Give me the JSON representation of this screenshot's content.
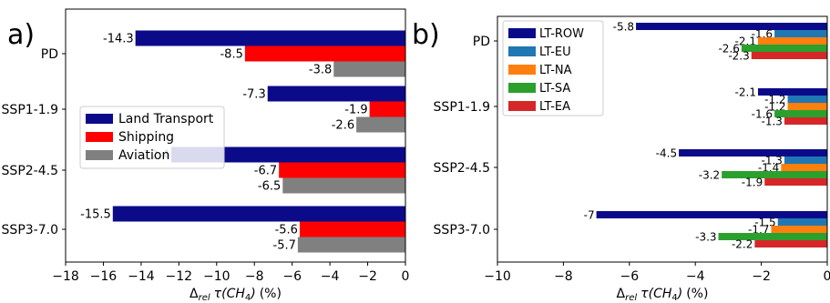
{
  "chart_data": [
    {
      "type": "bar",
      "orientation": "horizontal",
      "panel_label": "a)",
      "categories": [
        "PD",
        "SSP1-1.9",
        "SSP2-4.5",
        "SSP3-7.0"
      ],
      "series": [
        {
          "name": "Land Transport",
          "color": "#0b0b8a",
          "values": [
            -14.3,
            -7.3,
            -12.4,
            -15.5
          ]
        },
        {
          "name": "Shipping",
          "color": "#ff0000",
          "values": [
            -8.5,
            -1.9,
            -6.7,
            -5.6
          ]
        },
        {
          "name": "Aviation",
          "color": "#808080",
          "values": [
            -3.8,
            -2.6,
            -6.5,
            -5.7
          ]
        }
      ],
      "data_labels": true,
      "xlabel": "Δrel τ(CH4) (%)",
      "xlabel_parts": {
        "delta": "Δ",
        "sub": "rel",
        "tau": "τ(",
        "ch": "CH",
        "sub4": "4",
        "close": ")",
        "unit": "(%)"
      },
      "xlim": [
        -18,
        0
      ],
      "xticks": [
        -18,
        -16,
        -14,
        -12,
        -10,
        -8,
        -6,
        -4,
        -2,
        0
      ],
      "legend_placement": "center-left",
      "grid": false
    },
    {
      "type": "bar",
      "orientation": "horizontal",
      "panel_label": "b)",
      "categories": [
        "PD",
        "SSP1-1.9",
        "SSP2-4.5",
        "SSP3-7.0"
      ],
      "series": [
        {
          "name": "LT-ROW",
          "color": "#0b0b8a",
          "values": [
            -5.8,
            -2.1,
            -4.5,
            -7.0
          ]
        },
        {
          "name": "LT-EU",
          "color": "#1f77b4",
          "values": [
            -1.6,
            -1.2,
            -1.3,
            -1.5
          ]
        },
        {
          "name": "LT-NA",
          "color": "#ff7f0e",
          "values": [
            -2.1,
            -1.2,
            -1.4,
            -1.7
          ]
        },
        {
          "name": "LT-SA",
          "color": "#2ca02c",
          "values": [
            -2.6,
            -1.6,
            -3.2,
            -3.3
          ]
        },
        {
          "name": "LT-EA",
          "color": "#d62728",
          "values": [
            -2.3,
            -1.3,
            -1.9,
            -2.2
          ]
        }
      ],
      "data_labels": true,
      "xlabel": "Δrel τ(CH4) (%)",
      "xlabel_parts": {
        "delta": "Δ",
        "sub": "rel",
        "tau": "τ(",
        "ch": "CH",
        "sub4": "4",
        "close": ")",
        "unit": "(%)"
      },
      "xlim": [
        -10,
        0
      ],
      "xticks": [
        -10,
        -8,
        -6,
        -4,
        -2,
        0
      ],
      "legend_placement": "top-left",
      "grid": false
    }
  ]
}
